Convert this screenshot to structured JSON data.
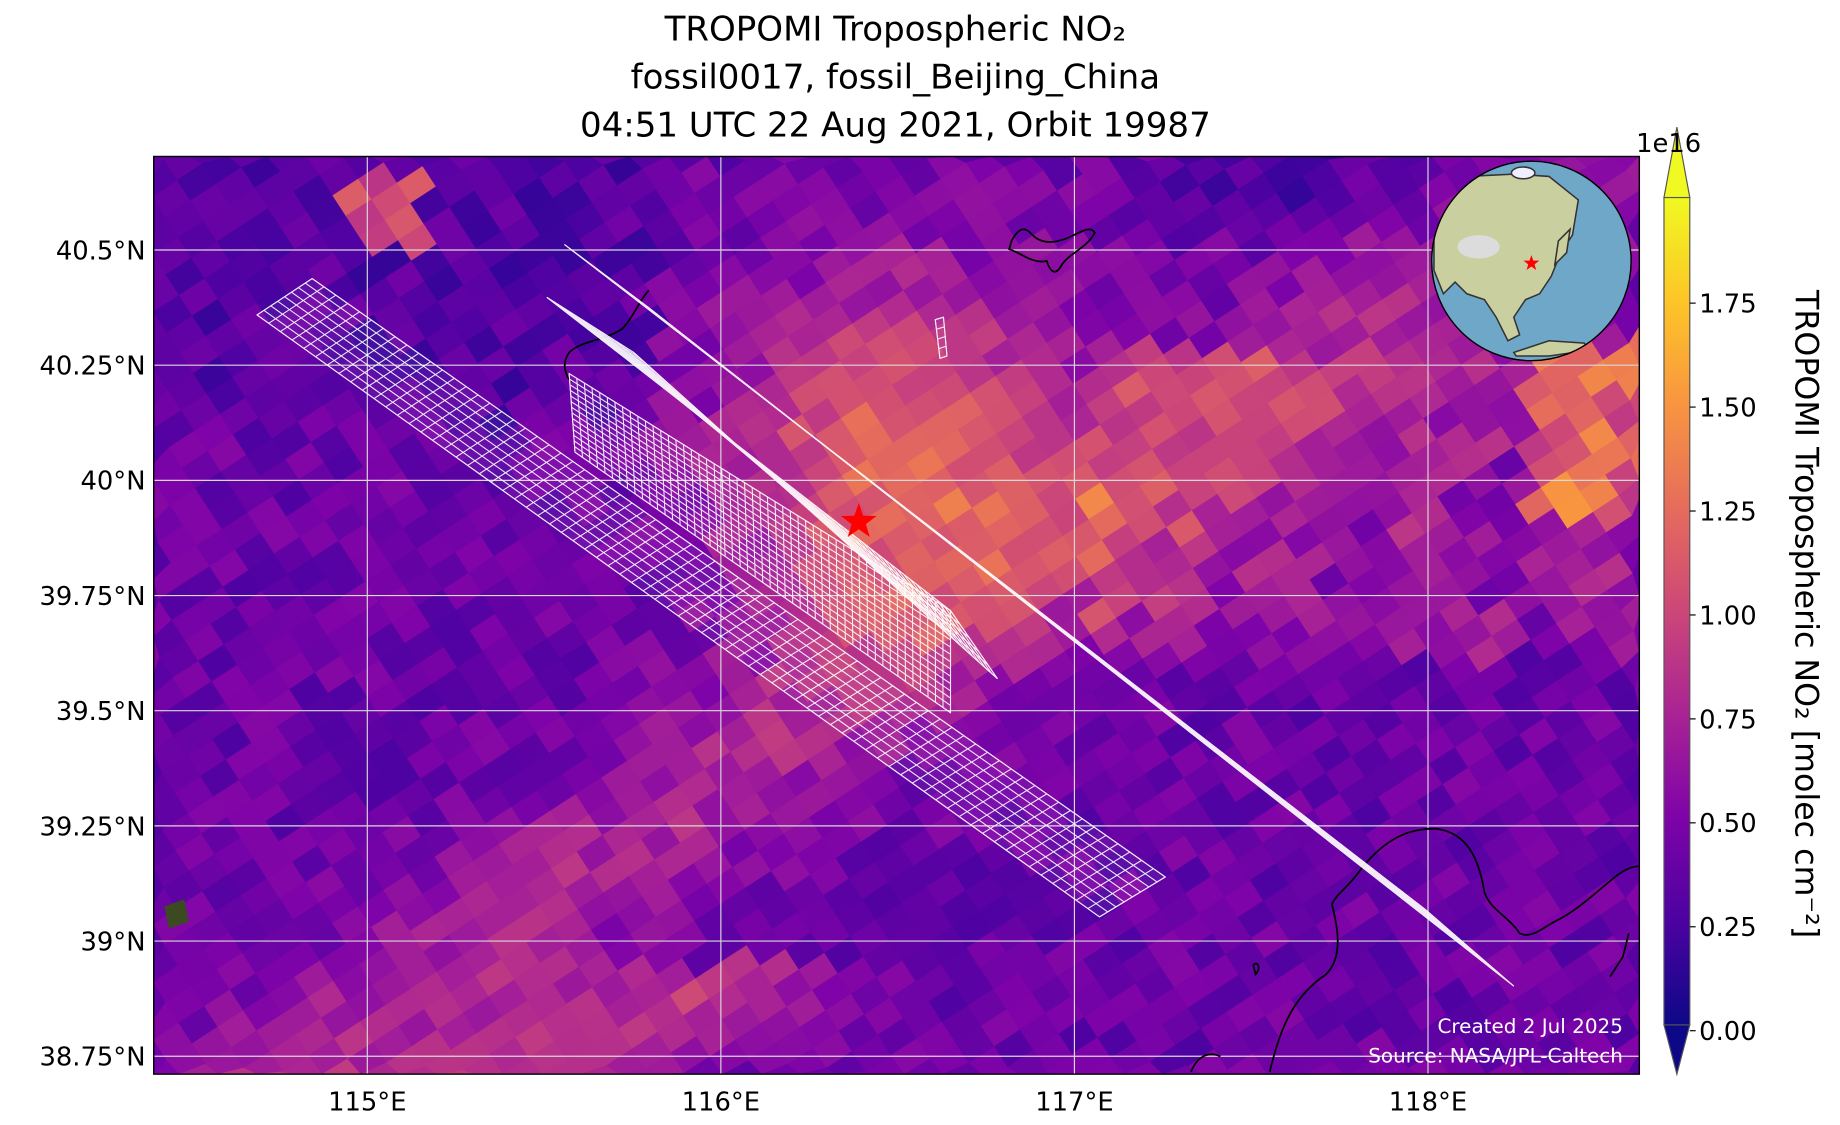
{
  "title": {
    "line1": "TROPOMI Tropospheric NO₂",
    "line2": "fossil0017, fossil_Beijing_China",
    "line3": "04:51 UTC 22 Aug 2021, Orbit 19987"
  },
  "credits": {
    "created": "Created 2 Jul 2025",
    "source": "Source: NASA/JPL-Caltech"
  },
  "colors": {
    "star": "#ff0000",
    "grid": "#d9d9d9",
    "footprint": "#ffffff"
  },
  "chart_data": {
    "type": "heatmap",
    "title": "TROPOMI Tropospheric NO₂",
    "colormap": "plasma",
    "xlabel": "",
    "ylabel": "",
    "xlim": [
      114.4,
      118.6
    ],
    "ylim": [
      38.7,
      40.7
    ],
    "x_ticks": [
      115,
      116,
      117,
      118
    ],
    "x_tick_labels": [
      "115°E",
      "116°E",
      "117°E",
      "118°E"
    ],
    "y_ticks": [
      40.5,
      40.25,
      40,
      39.75,
      39.5,
      39.25,
      39,
      38.75
    ],
    "y_tick_labels": [
      "40.5°N",
      "40.25°N",
      "40°N",
      "39.75°N",
      "39.5°N",
      "39.25°N",
      "39°N",
      "38.75°N"
    ],
    "grid": true,
    "target": {
      "name": "fossil_Beijing_China",
      "lon": 116.39,
      "lat": 39.91,
      "marker": "star"
    },
    "colorbar": {
      "label": "TROPOMI Tropospheric NO₂ [molec cm⁻²]",
      "offset_label": "1e16",
      "range": [
        0.0,
        1.95
      ],
      "extend": "both",
      "ticks": [
        0.0,
        0.25,
        0.5,
        0.75,
        1.0,
        1.25,
        1.5,
        1.75
      ],
      "tick_labels": [
        "0.00",
        "0.25",
        "0.50",
        "0.75",
        "1.00",
        "1.25",
        "1.50",
        "1.75"
      ]
    }
  }
}
